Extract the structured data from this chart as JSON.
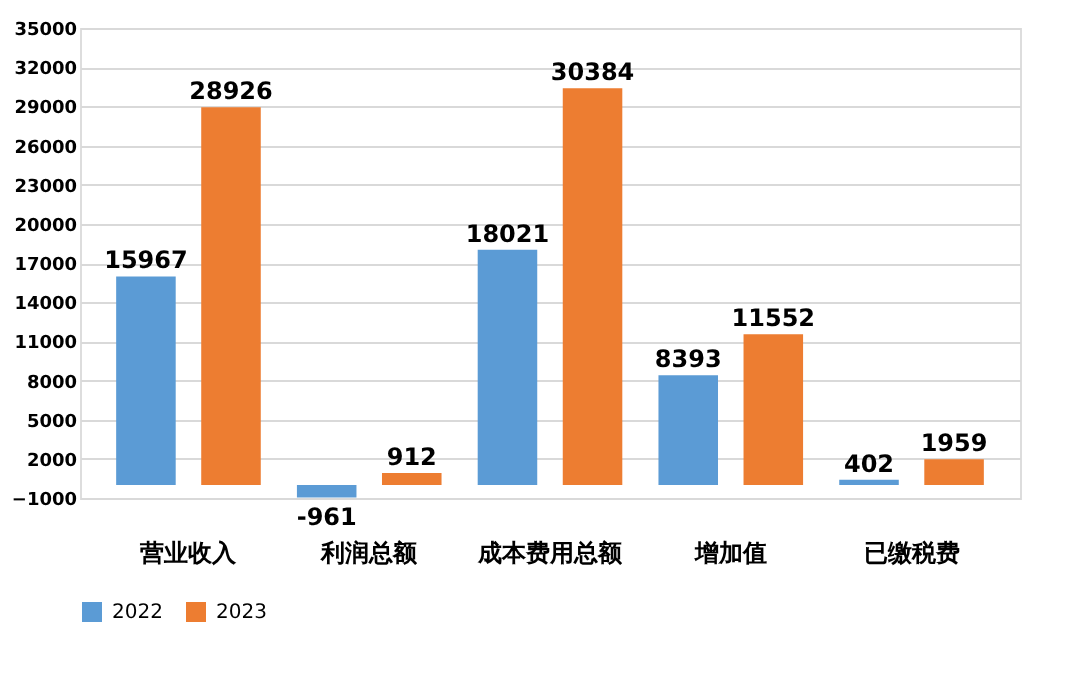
{
  "chart_data": {
    "type": "bar",
    "categories": [
      "营业收入",
      "利润总额",
      "成本费用总额",
      "增加值",
      "已缴税费"
    ],
    "series": [
      {
        "name": "2022",
        "color": "#5b9bd5",
        "values": [
          15967,
          -961,
          18021,
          8393,
          402
        ]
      },
      {
        "name": "2023",
        "color": "#ed7d31",
        "values": [
          28926,
          912,
          30384,
          11552,
          1959
        ]
      }
    ],
    "ylim": [
      -1000,
      35000
    ],
    "yticks": [
      -1000,
      2000,
      5000,
      8000,
      11000,
      14000,
      17000,
      20000,
      23000,
      26000,
      29000,
      32000,
      35000
    ],
    "grid": "y",
    "legend": "bottom",
    "data_labels": true
  }
}
